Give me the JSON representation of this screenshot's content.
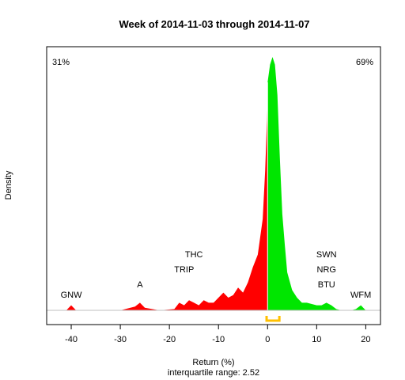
{
  "chart_data": {
    "type": "area",
    "title": "Week of 2014-11-03 through 2014-11-07",
    "xlabel": "Return (%)",
    "ylabel": "Density",
    "subtitle": "interquartile range: 2.52",
    "xlim": [
      -45,
      23
    ],
    "ylim": [
      0,
      1
    ],
    "x_ticks": [
      -40,
      -30,
      -20,
      -10,
      0,
      10,
      20
    ],
    "grid": false,
    "legend": "none",
    "pct_negative": "31%",
    "pct_positive": "69%",
    "iqr_bracket": [
      -0.2,
      2.4
    ],
    "colors": {
      "negative": "#ff0000",
      "positive": "#00e600",
      "iqr": "#ffc000",
      "neg_label": "#ff0000",
      "pos_label": "#009900"
    },
    "series": [
      {
        "x": [
          -41,
          -40,
          -39,
          -30,
          -27,
          -26,
          -25,
          -22,
          -19,
          -18,
          -17,
          -16,
          -15,
          -14,
          -13,
          -12,
          -11,
          -10,
          -9,
          -8,
          -7,
          -6,
          -5,
          -4,
          -3,
          -2,
          -1,
          -0.5,
          -0.01,
          0,
          0.5,
          1,
          1.5,
          2,
          2.5,
          3,
          3.5,
          4,
          5,
          6,
          7,
          8,
          9,
          10,
          11,
          12,
          13,
          14,
          15,
          16,
          17,
          18,
          19,
          20
        ],
        "y": [
          0,
          0.02,
          0,
          0,
          0.015,
          0.03,
          0.01,
          0,
          0.005,
          0.03,
          0.02,
          0.04,
          0.03,
          0.02,
          0.04,
          0.03,
          0.03,
          0.05,
          0.07,
          0.05,
          0.06,
          0.09,
          0.07,
          0.11,
          0.17,
          0.22,
          0.36,
          0.55,
          0.81,
          0.9,
          0.97,
          1.0,
          0.97,
          0.85,
          0.6,
          0.38,
          0.26,
          0.15,
          0.08,
          0.05,
          0.03,
          0.03,
          0.025,
          0.02,
          0.02,
          0.03,
          0.02,
          0.005,
          0,
          0,
          0,
          0.005,
          0.02,
          0
        ]
      }
    ],
    "annotations": [
      {
        "text": "GNW",
        "x": -40,
        "y": 0.05
      },
      {
        "text": "A",
        "x": -26,
        "y": 0.09
      },
      {
        "text": "TRIP",
        "x": -17,
        "y": 0.15
      },
      {
        "text": "THC",
        "x": -15,
        "y": 0.21
      },
      {
        "text": "SWN",
        "x": 12,
        "y": 0.21
      },
      {
        "text": "NRG",
        "x": 12,
        "y": 0.15
      },
      {
        "text": "BTU",
        "x": 12,
        "y": 0.09
      },
      {
        "text": "WFM",
        "x": 19,
        "y": 0.05
      }
    ]
  }
}
